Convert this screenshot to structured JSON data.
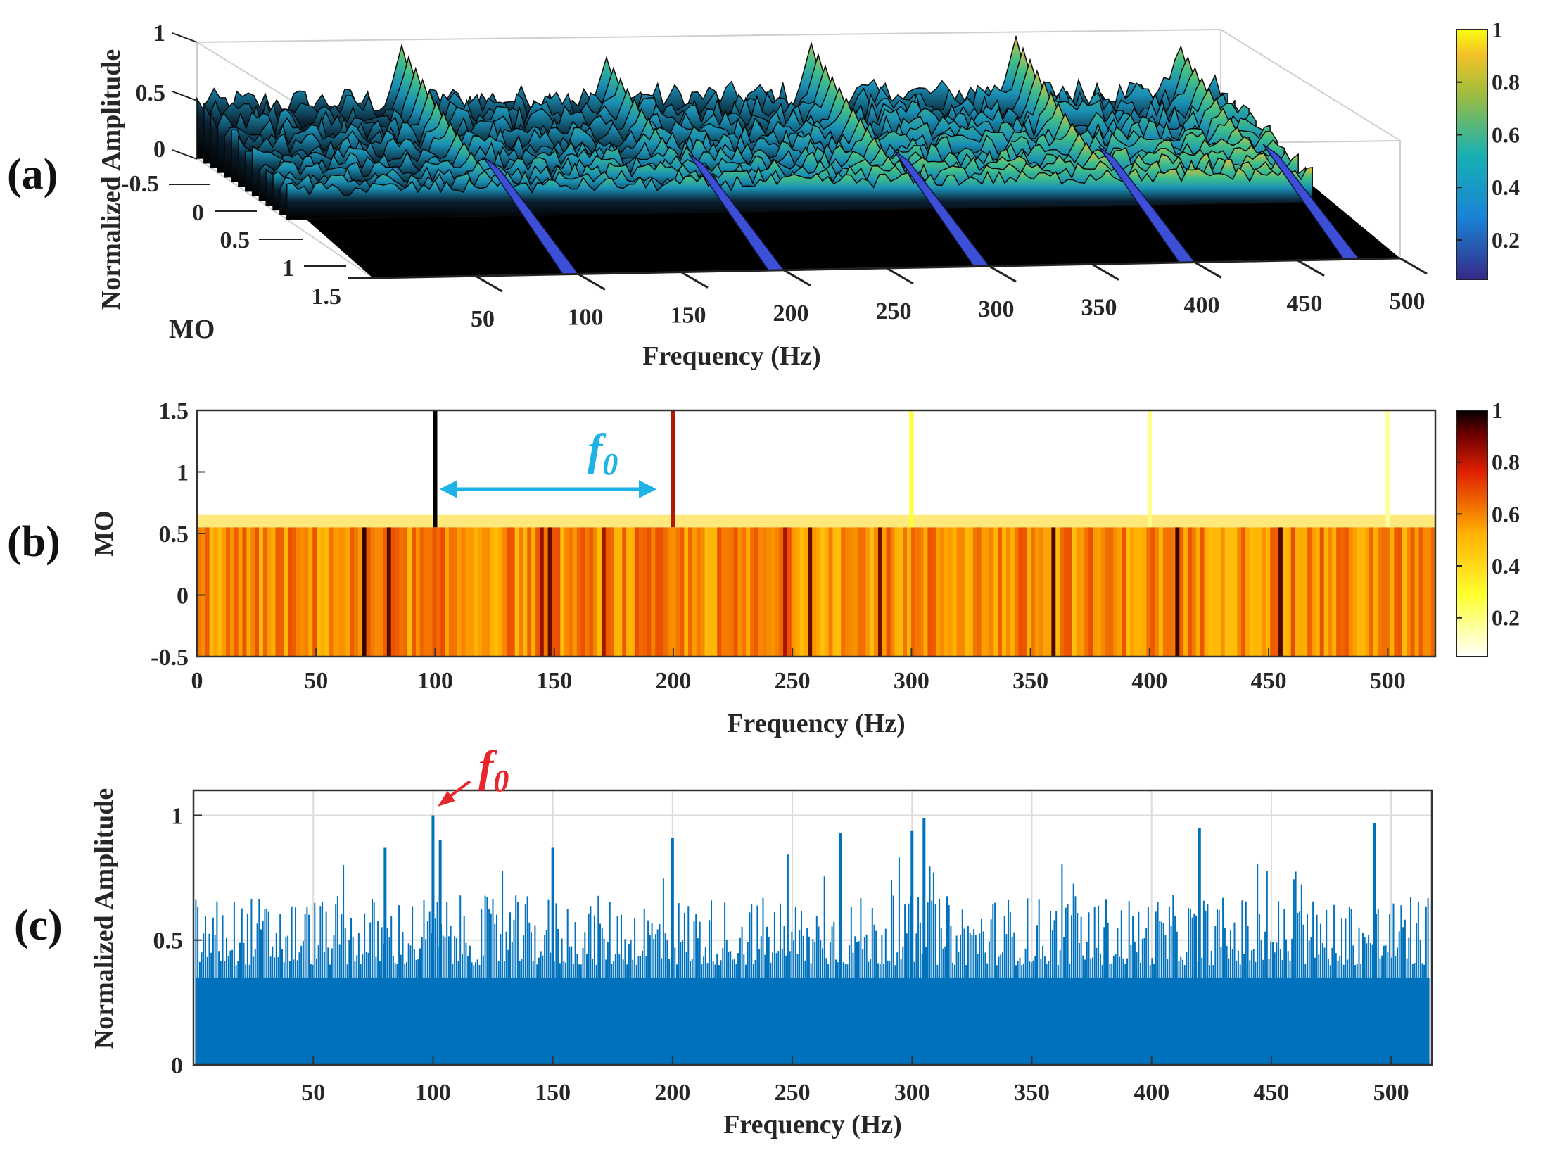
{
  "chart_data": [
    {
      "panel_label": "(a)",
      "type": "surface3d",
      "xlabel": "Frequency (Hz)",
      "ylabel": "MO",
      "zlabel": "Normalized Amplitude",
      "x_ticks": [
        "50",
        "100",
        "150",
        "200",
        "250",
        "300",
        "350",
        "400",
        "450",
        "500"
      ],
      "y_ticks": [
        "-0.5",
        "0",
        "0.5",
        "1",
        "1.5"
      ],
      "z_ticks": [
        "0",
        "0.5",
        "1"
      ],
      "xlim": [
        0,
        500
      ],
      "ylim": [
        -0.5,
        1.5
      ],
      "zlim": [
        0,
        1
      ],
      "colormap": "parula",
      "colorbar_ticks": [
        "0.2",
        "0.4",
        "0.6",
        "0.8",
        "1"
      ],
      "peaks": [
        {
          "x": 100,
          "z": 0.95
        },
        {
          "x": 200,
          "z": 0.82
        },
        {
          "x": 300,
          "z": 0.92
        },
        {
          "x": 400,
          "z": 0.95
        },
        {
          "x": 480,
          "z": 0.88
        }
      ]
    },
    {
      "panel_label": "(b)",
      "type": "heatmap",
      "xlabel": "Frequency (Hz)",
      "ylabel": "MO",
      "x_ticks": [
        "0",
        "50",
        "100",
        "150",
        "200",
        "250",
        "300",
        "350",
        "400",
        "450",
        "500"
      ],
      "y_ticks": [
        "-0.5",
        "0",
        "0.5",
        "1",
        "1.5"
      ],
      "xlim": [
        0,
        520
      ],
      "ylim": [
        -0.5,
        1.5
      ],
      "colormap": "hot (reversed)",
      "colorbar_ticks": [
        "0.2",
        "0.4",
        "0.6",
        "0.8",
        "1"
      ],
      "annotation": {
        "text": "f",
        "subscript": "0",
        "x_from": 100,
        "x_to": 200,
        "color": "#1fb2e6"
      },
      "harmonic_lines": [
        {
          "x": 100,
          "value": 1.0
        },
        {
          "x": 200,
          "value": 0.8
        },
        {
          "x": 300,
          "value": 0.25
        },
        {
          "x": 400,
          "value": 0.15
        },
        {
          "x": 500,
          "value": 0.12
        }
      ]
    },
    {
      "panel_label": "(c)",
      "type": "bar",
      "xlabel": "Frequency (Hz)",
      "ylabel": "Normalized Amplitude",
      "x_ticks": [
        "50",
        "100",
        "150",
        "200",
        "250",
        "300",
        "350",
        "400",
        "450",
        "500"
      ],
      "y_ticks": [
        "0",
        "0.5",
        "1"
      ],
      "xlim": [
        0,
        517
      ],
      "ylim": [
        0,
        1.1
      ],
      "color": "#0072bd",
      "annotation": {
        "text": "f",
        "subscript": "0",
        "x": 100,
        "y": 1.0,
        "color": "#e8262b"
      },
      "peaks": [
        {
          "x": 100,
          "y": 1.0
        },
        {
          "x": 103,
          "y": 0.9
        },
        {
          "x": 200,
          "y": 0.91
        },
        {
          "x": 270,
          "y": 0.93
        },
        {
          "x": 305,
          "y": 0.99
        },
        {
          "x": 300,
          "y": 0.94
        },
        {
          "x": 420,
          "y": 0.95
        },
        {
          "x": 493,
          "y": 0.97
        },
        {
          "x": 80,
          "y": 0.87
        },
        {
          "x": 150,
          "y": 0.87
        }
      ]
    }
  ]
}
